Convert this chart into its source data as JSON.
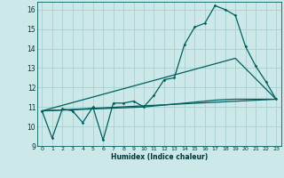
{
  "xlabel": "Humidex (Indice chaleur)",
  "bg_color": "#cde8e8",
  "grid_color": "#aacfcf",
  "line_color": "#005f5f",
  "xlim": [
    -0.5,
    23.5
  ],
  "ylim": [
    9,
    16.4
  ],
  "xticks": [
    0,
    1,
    2,
    3,
    4,
    5,
    6,
    7,
    8,
    9,
    10,
    11,
    12,
    13,
    14,
    15,
    16,
    17,
    18,
    19,
    20,
    21,
    22,
    23
  ],
  "yticks": [
    9,
    10,
    11,
    12,
    13,
    14,
    15,
    16
  ],
  "line1_x": [
    0,
    1,
    2,
    3,
    4,
    5,
    6,
    7,
    8,
    9,
    10,
    11,
    12,
    13,
    14,
    15,
    16,
    17,
    18,
    19,
    20,
    21,
    22,
    23
  ],
  "line1_y": [
    10.8,
    9.4,
    10.9,
    10.8,
    10.2,
    11.0,
    9.3,
    11.2,
    11.2,
    11.3,
    11.0,
    11.6,
    12.4,
    12.5,
    14.2,
    15.1,
    15.3,
    16.2,
    16.0,
    15.7,
    14.1,
    13.1,
    12.3,
    11.4
  ],
  "line2_x": [
    0,
    23
  ],
  "line2_y": [
    10.8,
    11.4
  ],
  "line3_x": [
    0,
    19,
    23
  ],
  "line3_y": [
    10.8,
    13.5,
    11.4
  ],
  "line4_x": [
    0,
    10,
    11,
    12,
    13,
    14,
    15,
    16,
    17,
    18,
    19,
    20,
    21,
    22,
    23
  ],
  "line4_y": [
    10.8,
    11.0,
    11.05,
    11.1,
    11.15,
    11.2,
    11.25,
    11.3,
    11.35,
    11.38,
    11.4,
    11.4,
    11.4,
    11.4,
    11.4
  ]
}
